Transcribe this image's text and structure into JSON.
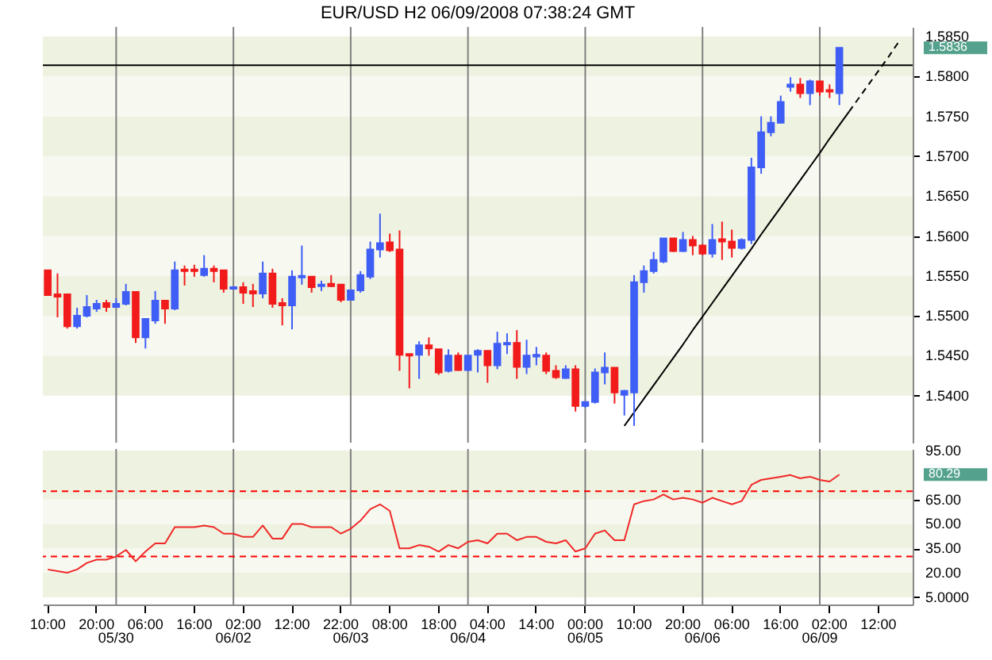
{
  "chart_data": [
    {
      "type": "candlestick",
      "title": "EUR/USD H2  06/09/2008  07:38:24 GMT",
      "categories": [
        "10:00",
        null,
        null,
        null,
        null,
        "20:00",
        null,
        "05/30",
        null,
        null,
        "06:00",
        null,
        null,
        null,
        null,
        "16:00",
        null,
        null,
        null,
        "06/02",
        "02:00",
        null,
        null,
        null,
        null,
        "12:00",
        null,
        null,
        null,
        null,
        "22:00",
        "06/03",
        null,
        null,
        null,
        "08:00",
        null,
        null,
        null,
        null,
        "18:00",
        null,
        null,
        "06/04",
        null,
        "04:00",
        null,
        null,
        null,
        null,
        "14:00",
        null,
        null,
        null,
        null,
        "00:00",
        null,
        null,
        null,
        null,
        "10:00",
        null,
        null,
        null,
        null,
        "20:00",
        null,
        "06/06",
        null,
        null,
        "06:00",
        null,
        null,
        null,
        null,
        "16:00",
        null,
        null,
        null,
        "06/09",
        "02:00",
        null,
        null,
        null,
        null,
        "12:00",
        null,
        null,
        null
      ],
      "ohlc": [
        [
          1.5557,
          1.5557,
          1.5526,
          1.5526
        ],
        [
          1.5527,
          1.5553,
          1.5498,
          1.5524
        ],
        [
          1.5527,
          1.5527,
          1.5484,
          1.5487
        ],
        [
          1.5487,
          1.551,
          1.5484,
          1.55
        ],
        [
          1.55,
          1.5526,
          1.5498,
          1.5511
        ],
        [
          1.5509,
          1.552,
          1.5505,
          1.5515
        ],
        [
          1.5516,
          1.552,
          1.5505,
          1.5511
        ],
        [
          1.5511,
          1.5522,
          1.551,
          1.5515
        ],
        [
          1.5515,
          1.554,
          1.5513,
          1.553
        ],
        [
          1.553,
          1.553,
          1.5466,
          1.5473
        ],
        [
          1.5473,
          1.5497,
          1.5459,
          1.5496
        ],
        [
          1.5494,
          1.5531,
          1.549,
          1.5519
        ],
        [
          1.5519,
          1.5519,
          1.549,
          1.5509
        ],
        [
          1.5509,
          1.5568,
          1.5507,
          1.5557
        ],
        [
          1.5558,
          1.5563,
          1.5538,
          1.5556
        ],
        [
          1.5558,
          1.5564,
          1.5549,
          1.5556
        ],
        [
          1.5551,
          1.5576,
          1.5549,
          1.5559
        ],
        [
          1.5559,
          1.5563,
          1.5542,
          1.5556
        ],
        [
          1.5557,
          1.5557,
          1.5529,
          1.5534
        ],
        [
          1.5534,
          1.5536,
          1.5534,
          1.5536
        ],
        [
          1.5536,
          1.5542,
          1.5515,
          1.5529
        ],
        [
          1.5531,
          1.554,
          1.5511,
          1.5528
        ],
        [
          1.5528,
          1.5568,
          1.5522,
          1.5553
        ],
        [
          1.5553,
          1.5559,
          1.551,
          1.5515
        ],
        [
          1.5516,
          1.5522,
          1.5488,
          1.5513
        ],
        [
          1.5513,
          1.5557,
          1.5483,
          1.5549
        ],
        [
          1.5548,
          1.5588,
          1.5539,
          1.555
        ],
        [
          1.5549,
          1.5549,
          1.5529,
          1.5536
        ],
        [
          1.5537,
          1.5544,
          1.5531,
          1.5539
        ],
        [
          1.554,
          1.5551,
          1.5536,
          1.5537
        ],
        [
          1.5539,
          1.5539,
          1.5517,
          1.552
        ],
        [
          1.552,
          1.5532,
          1.5519,
          1.5532
        ],
        [
          1.5532,
          1.5556,
          1.5529,
          1.5551
        ],
        [
          1.5549,
          1.5593,
          1.5546,
          1.5583
        ],
        [
          1.5583,
          1.5628,
          1.5573,
          1.5591
        ],
        [
          1.5592,
          1.5603,
          1.558,
          1.5582
        ],
        [
          1.5583,
          1.5607,
          1.5431,
          1.5451
        ],
        [
          1.5452,
          1.5452,
          1.5409,
          1.545
        ],
        [
          1.5451,
          1.5468,
          1.5421,
          1.5463
        ],
        [
          1.5463,
          1.5473,
          1.545,
          1.5459
        ],
        [
          1.5458,
          1.5458,
          1.5426,
          1.5429
        ],
        [
          1.5431,
          1.5458,
          1.5429,
          1.545
        ],
        [
          1.545,
          1.5454,
          1.5431,
          1.5432
        ],
        [
          1.5432,
          1.545,
          1.5431,
          1.545
        ],
        [
          1.5451,
          1.5458,
          1.5429,
          1.5456
        ],
        [
          1.5456,
          1.5456,
          1.5416,
          1.5438
        ],
        [
          1.5438,
          1.548,
          1.5433,
          1.5465
        ],
        [
          1.5464,
          1.5478,
          1.5452,
          1.5466
        ],
        [
          1.5466,
          1.5482,
          1.5421,
          1.5436
        ],
        [
          1.5436,
          1.547,
          1.5427,
          1.545
        ],
        [
          1.5449,
          1.5461,
          1.5438,
          1.5451
        ],
        [
          1.545,
          1.5454,
          1.5427,
          1.5431
        ],
        [
          1.5431,
          1.5438,
          1.5421,
          1.5423
        ],
        [
          1.5422,
          1.5438,
          1.5421,
          1.5433
        ],
        [
          1.5433,
          1.5438,
          1.538,
          1.5387
        ],
        [
          1.5387,
          1.5392,
          1.5385,
          1.5392
        ],
        [
          1.5392,
          1.5434,
          1.539,
          1.5429
        ],
        [
          1.5429,
          1.5454,
          1.5414,
          1.5435
        ],
        [
          1.5435,
          1.5435,
          1.539,
          1.5404
        ],
        [
          1.5401,
          1.5407,
          1.5375,
          1.5406
        ],
        [
          1.5404,
          1.5551,
          1.5362,
          1.5542
        ],
        [
          1.5542,
          1.5563,
          1.5529,
          1.5556
        ],
        [
          1.5556,
          1.558,
          1.5553,
          1.557
        ],
        [
          1.5568,
          1.5597,
          1.5566,
          1.5597
        ],
        [
          1.5597,
          1.5597,
          1.558,
          1.5581
        ],
        [
          1.5581,
          1.5605,
          1.558,
          1.5595
        ],
        [
          1.5595,
          1.56,
          1.5576,
          1.5588
        ],
        [
          1.5588,
          1.559,
          1.5576,
          1.5578
        ],
        [
          1.5578,
          1.5615,
          1.5573,
          1.5595
        ],
        [
          1.5596,
          1.5618,
          1.557,
          1.5593
        ],
        [
          1.5593,
          1.5608,
          1.5573,
          1.5585
        ],
        [
          1.5585,
          1.5597,
          1.5583,
          1.5595
        ],
        [
          1.5595,
          1.5698,
          1.559,
          1.5686
        ],
        [
          1.5686,
          1.575,
          1.5678,
          1.573
        ],
        [
          1.573,
          1.575,
          1.5725,
          1.5742
        ],
        [
          1.5742,
          1.5776,
          1.5741,
          1.5768
        ],
        [
          1.5787,
          1.5799,
          1.5781,
          1.579
        ],
        [
          1.579,
          1.5798,
          1.5773,
          1.5779
        ],
        [
          1.5779,
          1.5796,
          1.5764,
          1.5794
        ],
        [
          1.5794,
          1.5794,
          1.5776,
          1.5781
        ],
        [
          1.5783,
          1.579,
          1.5773,
          1.5781
        ],
        [
          1.5779,
          1.5836,
          1.5764,
          1.5836
        ],
        null,
        null,
        null,
        null,
        null,
        null,
        null
      ],
      "colors": [
        "#f21b1b",
        "#f21b1b",
        "#f21b1b",
        "#3f5ef5",
        "#3f5ef5",
        "#3f5ef5",
        "#f21b1b",
        "#3f5ef5",
        "#3f5ef5",
        "#f21b1b",
        "#3f5ef5",
        "#3f5ef5",
        "#f21b1b",
        "#3f5ef5",
        "#f21b1b",
        "#f21b1b",
        "#3f5ef5",
        "#f21b1b",
        "#f21b1b",
        "#3f5ef5",
        "#f21b1b",
        "#f21b1b",
        "#3f5ef5",
        "#f21b1b",
        "#f21b1b",
        "#3f5ef5",
        "#3f5ef5",
        "#f21b1b",
        "#3f5ef5",
        "#f21b1b",
        "#f21b1b",
        "#3f5ef5",
        "#3f5ef5",
        "#3f5ef5",
        "#3f5ef5",
        "#f21b1b",
        "#f21b1b",
        "#f21b1b",
        "#3f5ef5",
        "#f21b1b",
        "#f21b1b",
        "#3f5ef5",
        "#f21b1b",
        "#3f5ef5",
        "#3f5ef5",
        "#f21b1b",
        "#3f5ef5",
        "#3f5ef5",
        "#f21b1b",
        "#3f5ef5",
        "#3f5ef5",
        "#f21b1b",
        "#f21b1b",
        "#3f5ef5",
        "#f21b1b",
        "#3f5ef5",
        "#3f5ef5",
        "#3f5ef5",
        "#f21b1b",
        "#3f5ef5",
        "#3f5ef5",
        "#3f5ef5",
        "#3f5ef5",
        "#3f5ef5",
        "#f21b1b",
        "#3f5ef5",
        "#f21b1b",
        "#f21b1b",
        "#3f5ef5",
        "#f21b1b",
        "#f21b1b",
        "#3f5ef5",
        "#3f5ef5",
        "#3f5ef5",
        "#3f5ef5",
        "#3f5ef5",
        "#3f5ef5",
        "#f21b1b",
        "#3f5ef5",
        "#f21b1b",
        "#f21b1b",
        "#3f5ef5",
        null,
        null,
        null,
        null,
        null,
        null,
        null
      ],
      "series": [
        {
          "type": "line",
          "color": "#000000",
          "values": [
            null,
            null,
            null,
            null,
            null,
            null,
            null,
            null,
            null,
            null,
            null,
            null,
            null,
            null,
            null,
            null,
            null,
            null,
            null,
            null,
            null,
            null,
            null,
            null,
            null,
            null,
            null,
            null,
            null,
            null,
            null,
            null,
            null,
            null,
            null,
            null,
            null,
            null,
            null,
            null,
            null,
            null,
            null,
            null,
            null,
            null,
            null,
            null,
            null,
            null,
            null,
            null,
            null,
            null,
            null,
            null,
            null,
            null,
            null,
            1.5362,
            1.5379,
            1.5396,
            1.5413,
            1.543,
            1.5447,
            1.5464,
            1.5482,
            1.5499,
            1.5516,
            1.5533,
            1.555,
            1.5567,
            1.5584,
            1.5602,
            1.5619,
            1.5636,
            1.5653,
            1.567,
            1.5687,
            1.5704,
            1.5722,
            1.5739,
            1.5756,
            null,
            null,
            null,
            null,
            null,
            null
          ]
        },
        {
          "type": "line",
          "color": "#000000",
          "line_style": "dashed",
          "values": [
            null,
            null,
            null,
            null,
            null,
            null,
            null,
            null,
            null,
            null,
            null,
            null,
            null,
            null,
            null,
            null,
            null,
            null,
            null,
            null,
            null,
            null,
            null,
            null,
            null,
            null,
            null,
            null,
            null,
            null,
            null,
            null,
            null,
            null,
            null,
            null,
            null,
            null,
            null,
            null,
            null,
            null,
            null,
            null,
            null,
            null,
            null,
            null,
            null,
            null,
            null,
            null,
            null,
            null,
            null,
            null,
            null,
            null,
            null,
            null,
            null,
            null,
            null,
            null,
            null,
            null,
            null,
            null,
            null,
            null,
            null,
            null,
            null,
            null,
            null,
            null,
            null,
            null,
            null,
            null,
            null,
            null,
            1.5756,
            1.5773,
            1.579,
            1.5807,
            1.5824,
            1.5842,
            null
          ]
        }
      ],
      "ylim": [
        1.5341,
        1.5862
      ],
      "yticks": [
        {
          "value": 1.54,
          "label": "1.5400"
        },
        {
          "value": 1.545,
          "label": "1.5450"
        },
        {
          "value": 1.55,
          "label": "1.5500"
        },
        {
          "value": 1.555,
          "label": "1.5550"
        },
        {
          "value": 1.56,
          "label": "1.5600"
        },
        {
          "value": 1.565,
          "label": "1.5650"
        },
        {
          "value": 1.57,
          "label": "1.5700"
        },
        {
          "value": 1.575,
          "label": "1.5750"
        },
        {
          "value": 1.58,
          "label": "1.5800"
        },
        {
          "value": 1.585,
          "label": "1.5850"
        }
      ],
      "tick_labels": "y",
      "ref_lines": [
        {
          "axis": "x",
          "value": "05/30",
          "color": "#808080"
        },
        {
          "axis": "x",
          "value": "06/02",
          "color": "#808080"
        },
        {
          "axis": "x",
          "value": "06/03",
          "color": "#808080"
        },
        {
          "axis": "x",
          "value": "06/04",
          "color": "#808080"
        },
        {
          "axis": "x",
          "value": "00:00",
          "color": "#808080"
        },
        {
          "axis": "x",
          "value": "06/06",
          "color": "#808080"
        },
        {
          "axis": "x",
          "value": "06/09",
          "color": "#808080"
        },
        {
          "axis": "y",
          "value": 1.5814,
          "color": "#000000"
        }
      ],
      "annotations": [
        "1.5836"
      ]
    },
    {
      "type": "line",
      "categories": [
        "10:00",
        null,
        null,
        null,
        null,
        "20:00",
        null,
        "05/30",
        null,
        null,
        "06:00",
        null,
        null,
        null,
        null,
        "16:00",
        null,
        null,
        null,
        "06/02",
        "02:00",
        null,
        null,
        null,
        null,
        "12:00",
        null,
        null,
        null,
        null,
        "22:00",
        "06/03",
        null,
        null,
        null,
        "08:00",
        null,
        null,
        null,
        null,
        "18:00",
        null,
        null,
        "06/04",
        null,
        "04:00",
        null,
        null,
        null,
        null,
        "14:00",
        null,
        null,
        null,
        null,
        "00:00",
        null,
        null,
        null,
        null,
        "10:00",
        null,
        null,
        null,
        null,
        "20:00",
        null,
        "06/06",
        null,
        null,
        "06:00",
        null,
        null,
        null,
        null,
        "16:00",
        null,
        null,
        null,
        "06/09",
        "02:00",
        null,
        null,
        null,
        null,
        "12:00",
        null,
        null,
        null
      ],
      "series": [
        {
          "color": "#f02828",
          "values": [
            22,
            21,
            20,
            22,
            26,
            28,
            28,
            30,
            34,
            27,
            33,
            38,
            38,
            48,
            48,
            48,
            49,
            48,
            44,
            44,
            42,
            42,
            49,
            41,
            41,
            50,
            50,
            48,
            48,
            48,
            44,
            47,
            52,
            59,
            62,
            58,
            35,
            35,
            37,
            36,
            33,
            37,
            35,
            39,
            40,
            38,
            44,
            44,
            40,
            42,
            42,
            39,
            38,
            40,
            33,
            35,
            44,
            46,
            40,
            40,
            62,
            64,
            65,
            68,
            65,
            66,
            65,
            63,
            66,
            64,
            62,
            64,
            74,
            77,
            78,
            79,
            80,
            78,
            79,
            77,
            76,
            80.29,
            null,
            null,
            null,
            null,
            null,
            null,
            null
          ]
        }
      ],
      "ylim": [
        0.5,
        96
      ],
      "yticks": [
        {
          "value": 5,
          "label": "5.0000"
        },
        {
          "value": 20,
          "label": "20.00"
        },
        {
          "value": 35,
          "label": "35.00"
        },
        {
          "value": 50,
          "label": "50.00"
        },
        {
          "value": 65,
          "label": "65.00"
        },
        {
          "value": 95,
          "label": "95.00"
        }
      ],
      "ref_lines": [
        {
          "axis": "x",
          "value": "05/30",
          "color": "#808080"
        },
        {
          "axis": "x",
          "value": "06/02",
          "color": "#808080"
        },
        {
          "axis": "x",
          "value": "06/03",
          "color": "#808080"
        },
        {
          "axis": "x",
          "value": "06/04",
          "color": "#808080"
        },
        {
          "axis": "x",
          "value": "00:00",
          "label": "06/05",
          "color": "#808080"
        },
        {
          "axis": "x",
          "value": "06/06",
          "color": "#808080"
        },
        {
          "axis": "x",
          "value": "06/09",
          "color": "#808080"
        },
        {
          "axis": "y",
          "value": 70,
          "color": "#ff0000",
          "line_style": "dashed"
        },
        {
          "axis": "y",
          "value": 30,
          "color": "#ff0000",
          "line_style": "dashed"
        }
      ],
      "annotations": [
        "80.29"
      ]
    }
  ]
}
